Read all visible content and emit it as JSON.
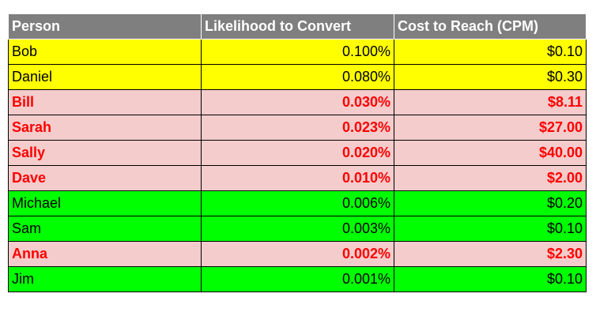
{
  "table": {
    "headers": {
      "person": "Person",
      "likelihood": "Likelihood to Convert",
      "cost": "Cost to Reach (CPM)"
    },
    "rows": [
      {
        "person": "Bob",
        "likelihood": "0.100%",
        "cost": "$0.10",
        "highlight": "yellow"
      },
      {
        "person": "Daniel",
        "likelihood": "0.080%",
        "cost": "$0.30",
        "highlight": "yellow"
      },
      {
        "person": "Bill",
        "likelihood": "0.030%",
        "cost": "$8.11",
        "highlight": "pink"
      },
      {
        "person": "Sarah",
        "likelihood": "0.023%",
        "cost": "$27.00",
        "highlight": "pink"
      },
      {
        "person": "Sally",
        "likelihood": "0.020%",
        "cost": "$40.00",
        "highlight": "pink"
      },
      {
        "person": "Dave",
        "likelihood": "0.010%",
        "cost": "$2.00",
        "highlight": "pink"
      },
      {
        "person": "Michael",
        "likelihood": "0.006%",
        "cost": "$0.20",
        "highlight": "green"
      },
      {
        "person": "Sam",
        "likelihood": "0.003%",
        "cost": "$0.10",
        "highlight": "green"
      },
      {
        "person": "Anna",
        "likelihood": "0.002%",
        "cost": "$2.30",
        "highlight": "pink"
      },
      {
        "person": "Jim",
        "likelihood": "0.001%",
        "cost": "$0.10",
        "highlight": "green"
      }
    ]
  },
  "colors": {
    "header_bg": "#7f7f7f",
    "header_text": "#ffffff",
    "yellow": "#ffff00",
    "pink": "#f4cccc",
    "pink_text": "#ff0000",
    "green": "#00ff00"
  }
}
